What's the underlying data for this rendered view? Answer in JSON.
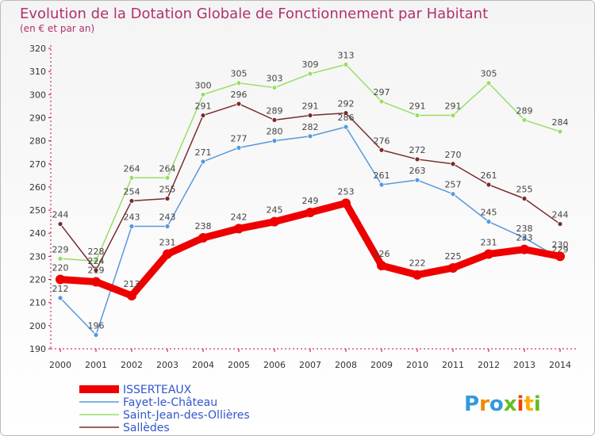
{
  "chart_data": {
    "type": "line",
    "title": "Evolution de la Dotation Globale de Fonctionnement par Habitant",
    "subtitle": "(en € et par an)",
    "x": [
      "2000",
      "2001",
      "2002",
      "2003",
      "2004",
      "2005",
      "2006",
      "2007",
      "2008",
      "2009",
      "2010",
      "2011",
      "2012",
      "2013",
      "2014"
    ],
    "ylim": [
      190,
      320
    ],
    "yticks": [
      190,
      200,
      210,
      220,
      230,
      240,
      250,
      260,
      270,
      280,
      290,
      300,
      310,
      320
    ],
    "grid": false,
    "legend_position": "bottom-left",
    "series": [
      {
        "name": "Saint-Jean-des-Ollières",
        "color": "#99dd66",
        "values": [
          229,
          228,
          264,
          264,
          300,
          305,
          303,
          309,
          313,
          297,
          291,
          291,
          305,
          289,
          284
        ]
      },
      {
        "name": "Sallèdes",
        "color": "#7a2a2a",
        "values": [
          244,
          224,
          254,
          255,
          291,
          296,
          289,
          291,
          292,
          276,
          272,
          270,
          261,
          255,
          244
        ]
      },
      {
        "name": "Fayet-le-Château",
        "color": "#5599dd",
        "values": [
          212,
          196,
          243,
          243,
          271,
          277,
          280,
          282,
          286,
          261,
          263,
          257,
          245,
          238,
          229
        ]
      },
      {
        "name": "ISSERTEAUX",
        "color": "#ee0000",
        "values": [
          220,
          219,
          213,
          231,
          238,
          242,
          245,
          249,
          253,
          226,
          222,
          225,
          231,
          233,
          230
        ]
      }
    ],
    "legend_order": [
      "ISSERTEAUX",
      "Fayet-le-Château",
      "Saint-Jean-des-Ollières",
      "Sallèdes"
    ]
  },
  "brand": {
    "text": "Proxiti"
  },
  "colors": {
    "title": "#b03070",
    "axis": "#cc0033",
    "legend_text": "#3355cc",
    "frame": "#bbbbbb"
  }
}
